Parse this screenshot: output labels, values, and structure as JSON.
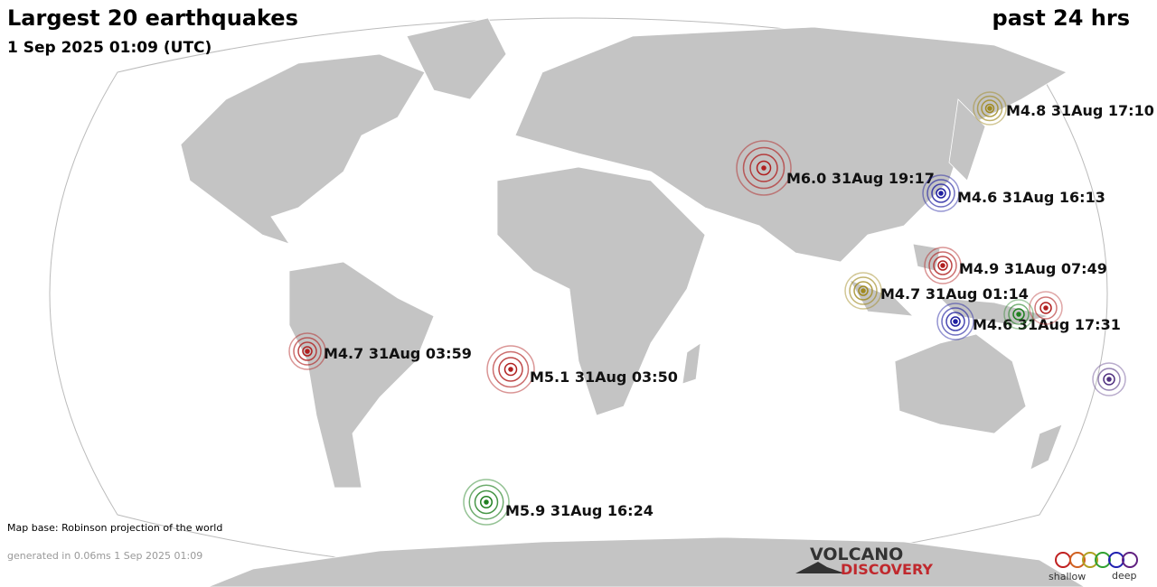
{
  "header": {
    "title": "Largest 20 earthquakes",
    "subtitle": "1 Sep 2025 01:09 (UTC)",
    "period": "past 24 hrs"
  },
  "quakes": [
    {
      "label": "M4.8 31Aug 17:10",
      "color": "#a08a20"
    },
    {
      "label": "M6.0 31Aug 19:17",
      "color": "#b02020"
    },
    {
      "label": "M4.6 31Aug 16:13",
      "color": "#2020a0"
    },
    {
      "label": "M4.9 31Aug 07:49",
      "color": "#b02020"
    },
    {
      "label": "M4.7 31Aug 01:14",
      "color": "#a08a20"
    },
    {
      "label": "M4.6 31Aug 17:31",
      "color": "#2020a0"
    },
    {
      "label": "M4.7 31Aug 03:59",
      "color": "#b02020"
    },
    {
      "label": "M5.1 31Aug 03:50",
      "color": "#b02020"
    },
    {
      "label": "M5.9 31Aug 16:24",
      "color": "#208020"
    }
  ],
  "footer": {
    "map_base": "Map base: Robinson projection of the world",
    "generated": "generated in 0.06ms  1 Sep 2025 01:09"
  },
  "logo": {
    "line1": "VOLCANO",
    "line2": "DISCOVERY"
  },
  "legend": {
    "shallow": "shallow",
    "deep": "deep"
  }
}
